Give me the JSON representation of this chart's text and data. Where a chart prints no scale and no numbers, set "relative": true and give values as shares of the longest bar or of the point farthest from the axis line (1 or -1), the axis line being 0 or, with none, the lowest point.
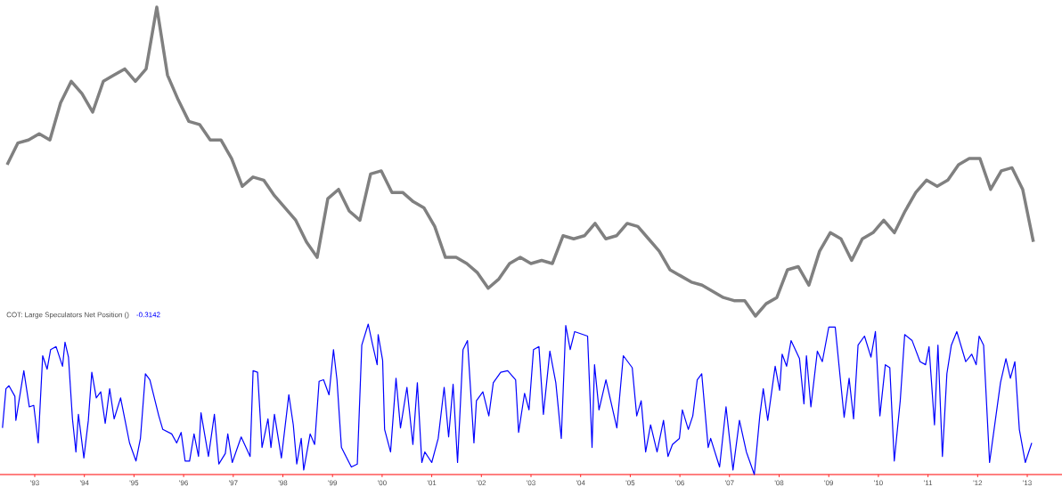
{
  "chart_data": [
    {
      "type": "line",
      "relative": true,
      "tick_labels": false,
      "categories": [
        null,
        null,
        null,
        null,
        null,
        null,
        null,
        null,
        null,
        null,
        null,
        null,
        null,
        null,
        null,
        null,
        null,
        null,
        null,
        null,
        null,
        null,
        null,
        null,
        null,
        null,
        null,
        null,
        null,
        null,
        null,
        null,
        null,
        null,
        null,
        null,
        null,
        null,
        null,
        null,
        null,
        null,
        null,
        null,
        null,
        null,
        null,
        null,
        null,
        null,
        null,
        null,
        null,
        null,
        null,
        null,
        null,
        null,
        null,
        null,
        null,
        null,
        null,
        null,
        null,
        null,
        null,
        null,
        null,
        null,
        null,
        null,
        null,
        null,
        null,
        null,
        null,
        null,
        null,
        null,
        null,
        null,
        null,
        null,
        null,
        null,
        null,
        null,
        null,
        null,
        null,
        null,
        null,
        null,
        null,
        null,
        null
      ],
      "series": [
        {
          "color": "#808080",
          "values": [
            0.49,
            0.56,
            0.57,
            0.59,
            0.57,
            0.69,
            0.76,
            0.72,
            0.66,
            0.76,
            0.78,
            0.8,
            0.76,
            0.8,
            1.0,
            0.78,
            0.7,
            0.63,
            0.62,
            0.57,
            0.57,
            0.51,
            0.42,
            0.45,
            0.44,
            0.39,
            0.35,
            0.31,
            0.24,
            0.19,
            0.38,
            0.41,
            0.34,
            0.31,
            0.46,
            0.47,
            0.4,
            0.4,
            0.37,
            0.35,
            0.29,
            0.19,
            0.19,
            0.17,
            0.14,
            0.09,
            0.12,
            0.17,
            0.19,
            0.17,
            0.18,
            0.17,
            0.26,
            0.25,
            0.26,
            0.3,
            0.25,
            0.26,
            0.3,
            0.29,
            0.25,
            0.21,
            0.15,
            0.13,
            0.11,
            0.1,
            0.08,
            0.06,
            0.05,
            0.05,
            0.0,
            0.04,
            0.06,
            0.15,
            0.16,
            0.1,
            0.21,
            0.27,
            0.25,
            0.18,
            0.25,
            0.27,
            0.31,
            0.27,
            0.34,
            0.4,
            0.44,
            0.42,
            0.44,
            0.49,
            0.51,
            0.51,
            0.41,
            0.47,
            0.48,
            0.41,
            0.24
          ]
        }
      ]
    },
    {
      "type": "line",
      "relative": true,
      "tick_labels": "x",
      "title": "COT: Large Speculators Net Position ()",
      "annotations": [
        "-0.3142"
      ],
      "xlim": [
        1992.3,
        2013.7
      ],
      "xticks": [
        {
          "value": 1993,
          "label": "'93"
        },
        {
          "value": 1994,
          "label": "'94"
        },
        {
          "value": 1995,
          "label": "'95"
        },
        {
          "value": 1996,
          "label": "'96"
        },
        {
          "value": 1997,
          "label": "'97"
        },
        {
          "value": 1998,
          "label": "'98"
        },
        {
          "value": 1999,
          "label": "'99"
        },
        {
          "value": 2000,
          "label": "'00"
        },
        {
          "value": 2001,
          "label": "'01"
        },
        {
          "value": 2002,
          "label": "'02"
        },
        {
          "value": 2003,
          "label": "'03"
        },
        {
          "value": 2004,
          "label": "'04"
        },
        {
          "value": 2005,
          "label": "'05"
        },
        {
          "value": 2006,
          "label": "'06"
        },
        {
          "value": 2007,
          "label": "'07"
        },
        {
          "value": 2008,
          "label": "'08"
        },
        {
          "value": 2009,
          "label": "'09"
        },
        {
          "value": 2010,
          "label": "'10"
        },
        {
          "value": 2011,
          "label": "'11"
        },
        {
          "value": 2012,
          "label": "'12"
        },
        {
          "value": 2013,
          "label": "'13"
        }
      ],
      "x": [
        1992.35,
        1992.42,
        1992.48,
        1992.6,
        1992.62,
        1992.78,
        1992.89,
        1992.98,
        1993.07,
        1993.16,
        1993.25,
        1993.32,
        1993.43,
        1993.56,
        1993.61,
        1993.68,
        1993.76,
        1993.83,
        1993.88,
        1993.99,
        1994.08,
        1994.15,
        1994.24,
        1994.33,
        1994.42,
        1994.51,
        1994.6,
        1994.73,
        1994.82,
        1994.91,
        1995.04,
        1995.13,
        1995.23,
        1995.32,
        1995.5,
        1995.58,
        1995.76,
        1995.86,
        1995.95,
        1996.03,
        1996.12,
        1996.21,
        1996.3,
        1996.35,
        1996.5,
        1996.62,
        1996.71,
        1996.84,
        1996.89,
        1996.98,
        1997.16,
        1997.34,
        1997.4,
        1997.49,
        1997.58,
        1997.7,
        1997.76,
        1997.83,
        1997.97,
        1998.12,
        1998.21,
        1998.28,
        1998.37,
        1998.42,
        1998.55,
        1998.64,
        1998.73,
        1998.82,
        1998.93,
        1999.02,
        1999.09,
        1999.18,
        1999.38,
        1999.5,
        1999.59,
        1999.72,
        1999.81,
        1999.9,
        1999.92,
        2000.01,
        2000.05,
        2000.17,
        2000.28,
        2000.37,
        2000.5,
        2000.62,
        2000.71,
        2000.8,
        2000.86,
        2001.0,
        2001.13,
        2001.25,
        2001.34,
        2001.43,
        2001.52,
        2001.63,
        2001.72,
        2001.85,
        2001.9,
        2002.03,
        2002.15,
        2002.24,
        2002.39,
        2002.53,
        2002.69,
        2002.75,
        2002.87,
        2002.96,
        2003.05,
        2003.16,
        2003.25,
        2003.38,
        2003.5,
        2003.61,
        2003.7,
        2003.79,
        2003.88,
        2004.14,
        2004.23,
        2004.28,
        2004.37,
        2004.51,
        2004.73,
        2004.86,
        2005.04,
        2005.13,
        2005.22,
        2005.31,
        2005.41,
        2005.54,
        2005.67,
        2005.76,
        2005.85,
        2005.99,
        2006.05,
        2006.17,
        2006.26,
        2006.35,
        2006.44,
        2006.57,
        2006.62,
        2006.8,
        2006.93,
        2007.07,
        2007.2,
        2007.34,
        2007.5,
        2007.61,
        2007.68,
        2007.77,
        2007.92,
        2008.01,
        2008.06,
        2008.15,
        2008.24,
        2008.41,
        2008.5,
        2008.55,
        2008.64,
        2008.77,
        2008.87,
        2009.0,
        2009.13,
        2009.31,
        2009.41,
        2009.5,
        2009.59,
        2009.72,
        2009.85,
        2009.94,
        2010.03,
        2010.14,
        2010.23,
        2010.32,
        2010.44,
        2010.53,
        2010.68,
        2010.84,
        2010.95,
        2011.02,
        2011.13,
        2011.2,
        2011.29,
        2011.38,
        2011.47,
        2011.58,
        2011.76,
        2011.88,
        2011.97,
        2012.03,
        2012.12,
        2012.24,
        2012.46,
        2012.57,
        2012.66,
        2012.75,
        2012.84,
        2012.96,
        2013.09
      ],
      "series": [
        {
          "color": "#0000ff",
          "values": [
            0.31,
            0.57,
            0.59,
            0.52,
            0.36,
            0.69,
            0.45,
            0.46,
            0.21,
            0.79,
            0.7,
            0.83,
            0.85,
            0.72,
            0.88,
            0.78,
            0.37,
            0.15,
            0.4,
            0.11,
            0.36,
            0.68,
            0.51,
            0.55,
            0.34,
            0.57,
            0.37,
            0.51,
            0.36,
            0.21,
            0.09,
            0.24,
            0.67,
            0.63,
            0.39,
            0.3,
            0.27,
            0.21,
            0.28,
            0.09,
            0.09,
            0.27,
            0.12,
            0.41,
            0.12,
            0.4,
            0.07,
            0.14,
            0.27,
            0.08,
            0.25,
            0.12,
            0.69,
            0.68,
            0.18,
            0.37,
            0.18,
            0.4,
            0.11,
            0.53,
            0.33,
            0.07,
            0.24,
            0.03,
            0.27,
            0.2,
            0.62,
            0.63,
            0.53,
            0.83,
            0.63,
            0.18,
            0.05,
            0.07,
            0.86,
            1.0,
            0.86,
            0.73,
            0.93,
            0.76,
            0.3,
            0.15,
            0.64,
            0.31,
            0.58,
            0.2,
            0.61,
            0.08,
            0.15,
            0.08,
            0.24,
            0.58,
            0.25,
            0.6,
            0.08,
            0.83,
            0.89,
            0.21,
            0.49,
            0.55,
            0.39,
            0.61,
            0.68,
            0.69,
            0.63,
            0.28,
            0.54,
            0.43,
            0.83,
            0.85,
            0.4,
            0.82,
            0.61,
            0.24,
            0.99,
            0.83,
            0.95,
            0.92,
            0.18,
            0.73,
            0.43,
            0.63,
            0.31,
            0.79,
            0.71,
            0.39,
            0.49,
            0.15,
            0.33,
            0.15,
            0.36,
            0.12,
            0.2,
            0.24,
            0.43,
            0.3,
            0.39,
            0.63,
            0.67,
            0.18,
            0.24,
            0.05,
            0.45,
            0.03,
            0.36,
            0.15,
            0.0,
            0.39,
            0.57,
            0.36,
            0.72,
            0.56,
            0.8,
            0.72,
            0.89,
            0.77,
            0.47,
            0.79,
            0.45,
            0.82,
            0.75,
            0.98,
            0.98,
            0.38,
            0.64,
            0.37,
            0.86,
            0.92,
            0.78,
            0.95,
            0.39,
            0.73,
            0.71,
            0.09,
            0.49,
            0.93,
            0.89,
            0.75,
            0.73,
            0.85,
            0.33,
            0.86,
            0.12,
            0.67,
            0.86,
            0.95,
            0.75,
            0.8,
            0.73,
            0.92,
            0.86,
            0.08,
            0.61,
            0.77,
            0.64,
            0.75,
            0.3,
            0.08,
            0.21
          ]
        }
      ]
    }
  ]
}
